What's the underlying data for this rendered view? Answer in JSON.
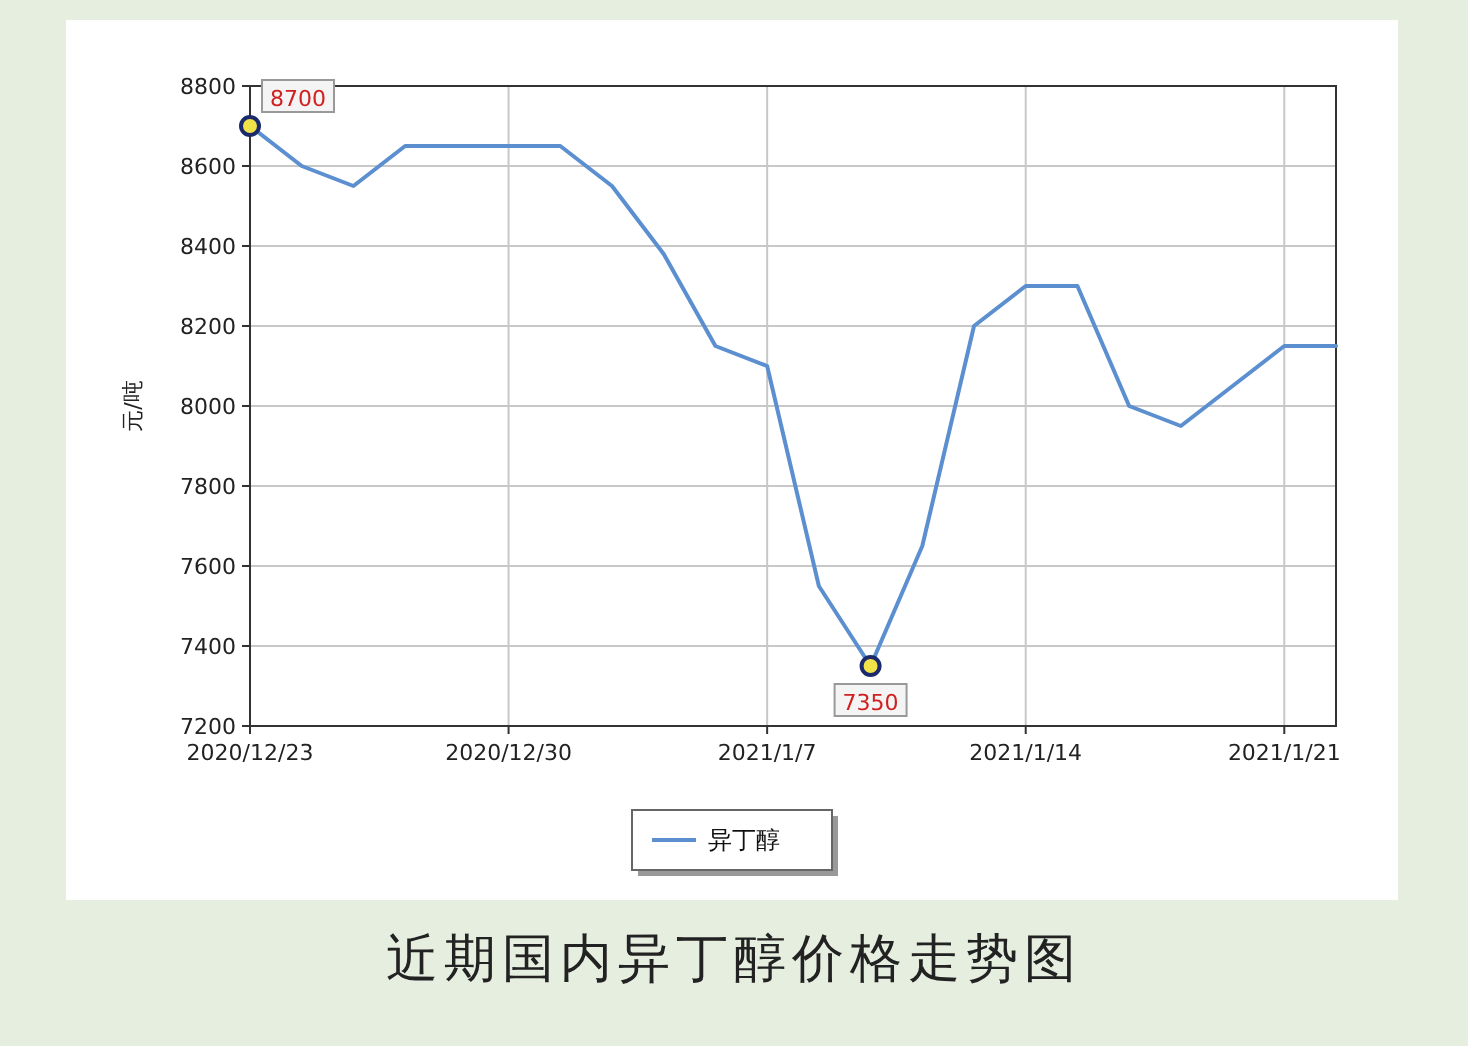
{
  "chart_data": {
    "type": "line",
    "title": "近期国内异丁醇价格走势图",
    "ylabel": "元/吨",
    "categories": [
      "2020/12/23",
      null,
      null,
      null,
      null,
      "2020/12/30",
      null,
      null,
      null,
      null,
      "2021/1/7",
      null,
      null,
      null,
      null,
      "2021/1/14",
      null,
      null,
      null,
      null,
      "2021/1/21",
      null
    ],
    "series": [
      {
        "name": "异丁醇",
        "color": "#5b8fd0",
        "values": [
          8700,
          8600,
          8550,
          8650,
          8650,
          8650,
          8650,
          8550,
          8380,
          8150,
          8100,
          7550,
          7350,
          7650,
          8200,
          8300,
          8300,
          8000,
          7950,
          8050,
          8150,
          8150
        ],
        "value_labels": [
          "8700",
          null,
          null,
          null,
          null,
          null,
          null,
          null,
          null,
          null,
          null,
          null,
          "7350",
          null,
          null,
          null,
          null,
          null,
          null,
          null,
          null,
          null
        ]
      }
    ],
    "ylim": [
      7200,
      8800
    ],
    "yticks": [
      7200,
      7400,
      7600,
      7800,
      8000,
      8200,
      8400,
      8600,
      8800
    ],
    "grid": true,
    "legend": "bottom"
  }
}
